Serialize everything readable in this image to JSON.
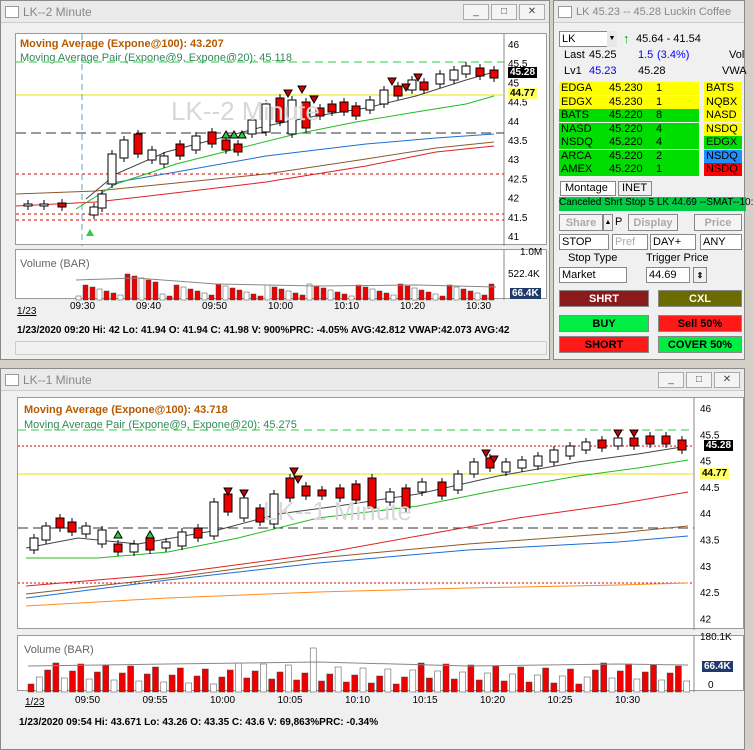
{
  "win2": {
    "title": "LK--2 Minute",
    "ma100": "Moving Average (Expone@100): 43.207",
    "pair": "Moving Average Pair (Expone@9, Expone@20): 45.118",
    "watermark": "LK--2 Minute",
    "yticks": [
      "46",
      "45.5",
      "45",
      "44.5",
      "44",
      "43.5",
      "43",
      "42.5",
      "42",
      "41.5",
      "41"
    ],
    "price_tag": "45.28",
    "yellow_tag": "44.77",
    "vol_label": "Volume (BAR)",
    "vol_ticks": [
      "1.0M",
      "522.4K"
    ],
    "vol_tag": "66.4K",
    "xticks": [
      "09:30",
      "09:40",
      "09:50",
      "10:00",
      "10:10",
      "10:20",
      "10:30"
    ],
    "date_tab": "1/23",
    "status": "1/23/2020 09:20  Hi: 42  Lo: 41.94  O: 41.94  C: 41.98  V: 900%PRC: -4.05% AVG:42.812  VWAP:42.073  AVG:42"
  },
  "win1": {
    "title": "LK--1 Minute",
    "ma100": "Moving Average (Expone@100): 43.718",
    "pair": "Moving Average Pair (Expone@9, Expone@20): 45.275",
    "watermark": "LK--1 Minute",
    "yticks": [
      "46",
      "45.5",
      "45",
      "44.5",
      "44",
      "43.5",
      "43",
      "42.5",
      "42"
    ],
    "price_tag": "45.28",
    "yellow_tag": "44.77",
    "vol_label": "Volume (BAR)",
    "vol_ticks": [
      "180.1K",
      "66.4K",
      "0"
    ],
    "vol_tag": "66.4K",
    "xticks": [
      "09:50",
      "09:55",
      "10:00",
      "10:05",
      "10:10",
      "10:15",
      "10:20",
      "10:25",
      "10:30"
    ],
    "date_tab": "1/23",
    "status": "1/23/2020 09:54  Hi: 43.671  Lo: 43.26  O: 43.35  C: 43.6  V: 69,863%PRC: -0.34%"
  },
  "level2": {
    "title": "LK  45.23 -- 45.28  Luckin Coffee",
    "symbol": "LK",
    "range": "45.64 - 41.54",
    "last_label": "Last",
    "last": "45.25",
    "chg": "1.5",
    "chg_pct": "(3.4%)",
    "vol_label": "Vol",
    "lv1_label": "Lv1",
    "bid": "45.23",
    "ask": "45.28",
    "vwap_label": "VWA",
    "rows": [
      {
        "mm": "EDGA",
        "price": "45.230",
        "size": "1",
        "right": "BATS",
        "color": "#ffff00",
        "rcolor": "#ffff00"
      },
      {
        "mm": "EDGX",
        "price": "45.230",
        "size": "1",
        "right": "NQBX",
        "color": "#ffff00",
        "rcolor": "#ffff00"
      },
      {
        "mm": "BATS",
        "price": "45.220",
        "size": "8",
        "right": "NASD",
        "color": "#00dd00",
        "rcolor": "#ffff00"
      },
      {
        "mm": "NASD",
        "price": "45.220",
        "size": "4",
        "right": "NSDQ",
        "color": "#00dd00",
        "rcolor": "#ffff00"
      },
      {
        "mm": "NSDQ",
        "price": "45.220",
        "size": "4",
        "right": "EDGX",
        "color": "#00dd00",
        "rcolor": "#00dd00"
      },
      {
        "mm": "ARCA",
        "price": "45.220",
        "size": "2",
        "right": "NSDQ",
        "color": "#00dd00",
        "rcolor": "#1e90ff"
      },
      {
        "mm": "AMEX",
        "price": "45.220",
        "size": "1",
        "right": "NSDQ",
        "color": "#00dd00",
        "rcolor": "#ff0000"
      }
    ],
    "tab_montage": "Montage",
    "tab_inet": "INET",
    "message": "Canceled Shrt Stop 5 LK 44.69 --SMAT--10:",
    "share": "Share",
    "p": "P",
    "display": "Display",
    "price": "Price",
    "order_type": "STOP",
    "pref": "Pref",
    "tif": "DAY+",
    "route": "ANY",
    "stop_type_label": "Stop Type",
    "trigger_label": "Trigger Price",
    "stop_type": "Market",
    "trigger": "44.69",
    "shrt": "SHRT",
    "cxl": "CXL",
    "buy": "BUY",
    "sell50": "Sell 50%",
    "short": "SHORT",
    "cover50": "COVER 50%"
  }
}
